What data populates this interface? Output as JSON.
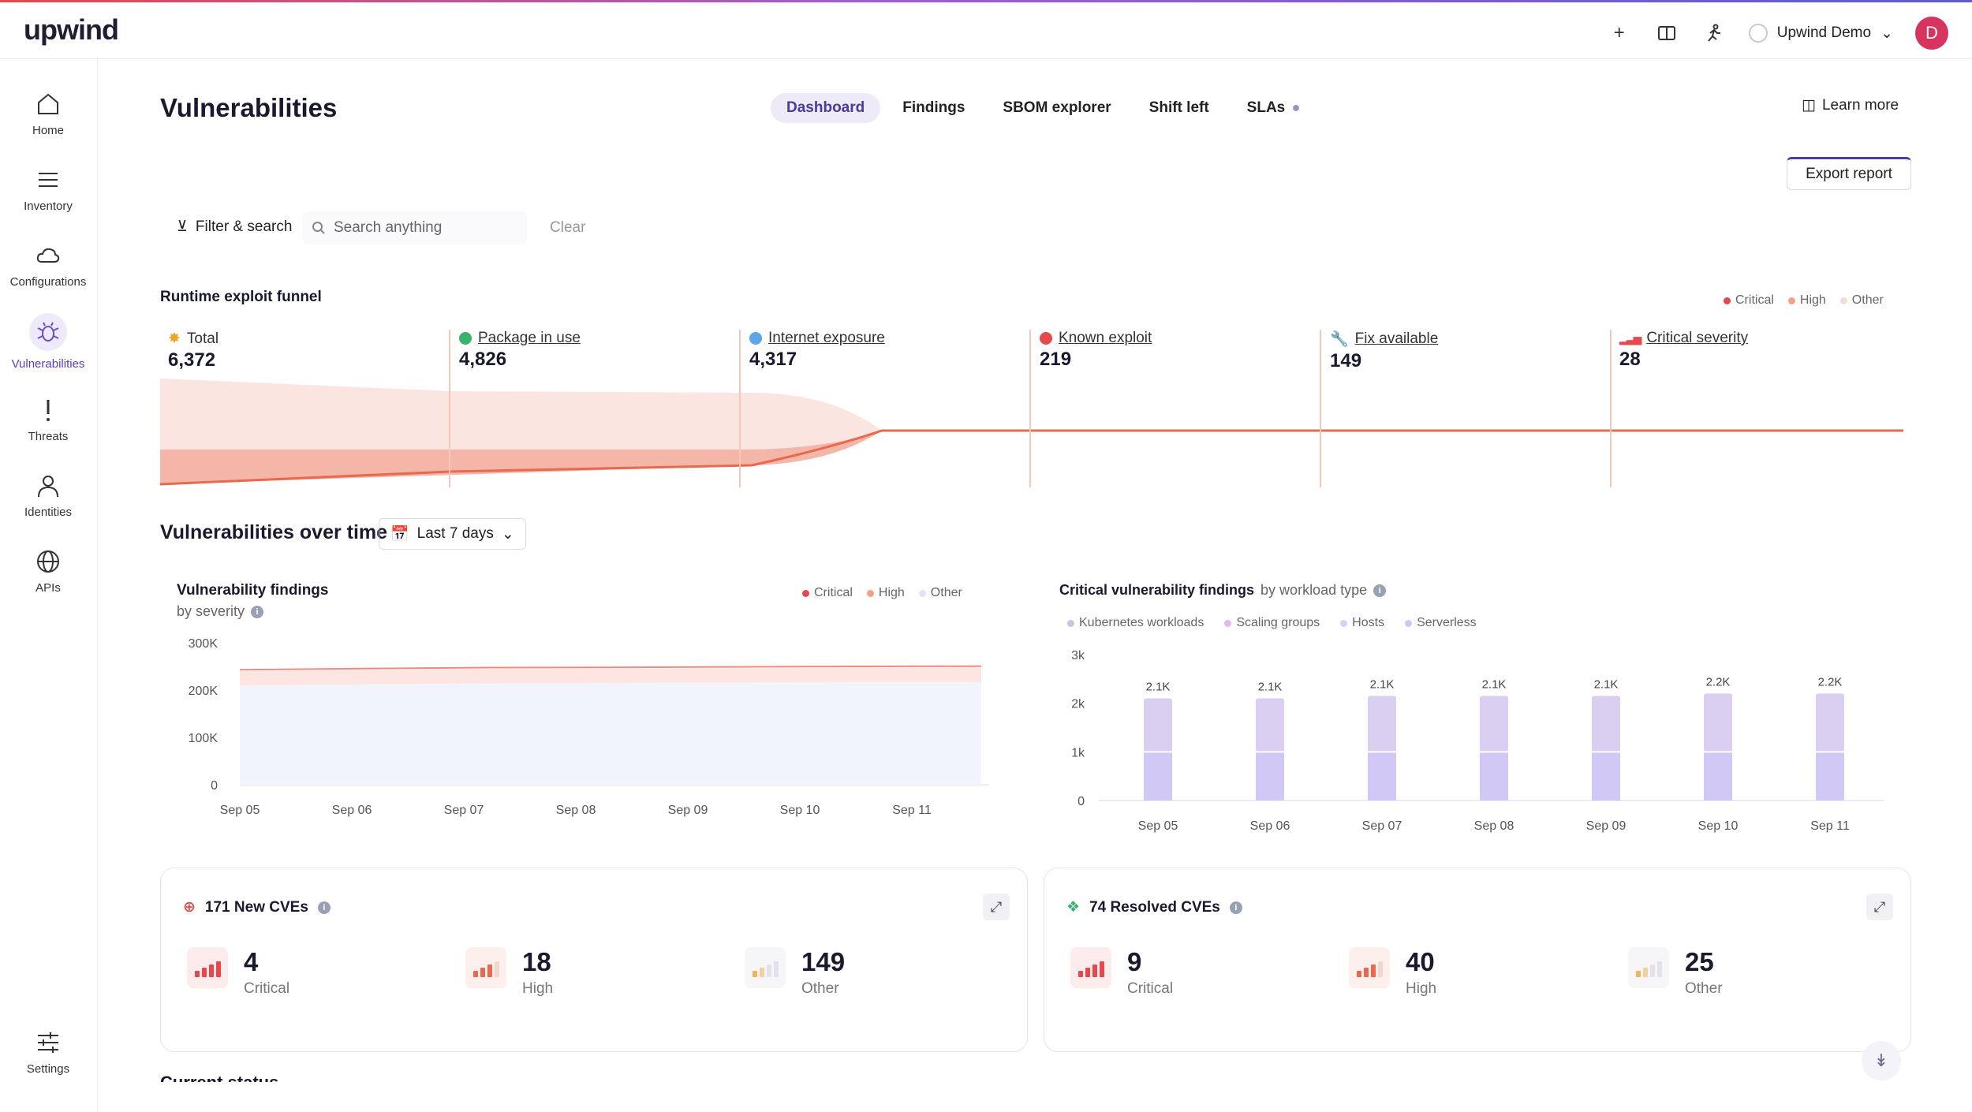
{
  "brand": {
    "logo": "upwind"
  },
  "topbar": {
    "org_name": "Upwind Demo",
    "avatar_initial": "D",
    "icons": [
      "plus-icon",
      "book-icon",
      "run-icon"
    ]
  },
  "sidebar": {
    "items": [
      {
        "label": "Home",
        "icon": "home-icon"
      },
      {
        "label": "Inventory",
        "icon": "list-icon"
      },
      {
        "label": "Configurations",
        "icon": "cloud-icon"
      },
      {
        "label": "Vulnerabilities",
        "icon": "bug-icon",
        "active": true
      },
      {
        "label": "Threats",
        "icon": "exclamation-icon"
      },
      {
        "label": "Identities",
        "icon": "user-icon"
      },
      {
        "label": "APIs",
        "icon": "globe-icon"
      },
      {
        "label": "Settings",
        "icon": "sliders-icon"
      }
    ]
  },
  "page": {
    "title": "Vulnerabilities",
    "tabs": [
      "Dashboard",
      "Findings",
      "SBOM explorer",
      "Shift left",
      "SLAs"
    ],
    "learn_more": "Learn more",
    "export_report": "Export report",
    "filter_label": "Filter & search",
    "search_placeholder": "Search anything",
    "clear_label": "Clear"
  },
  "funnel": {
    "title": "Runtime exploit funnel",
    "legend": [
      "Critical",
      "High",
      "Other"
    ],
    "steps": [
      {
        "label": "Total",
        "value": "6,372"
      },
      {
        "label": "Package in use",
        "value": "4,826"
      },
      {
        "label": "Internet exposure",
        "value": "4,317"
      },
      {
        "label": "Known exploit",
        "value": "219"
      },
      {
        "label": "Fix available",
        "value": "149"
      },
      {
        "label": "Critical severity",
        "value": "28"
      }
    ]
  },
  "over_time": {
    "title": "Vulnerabilities over time",
    "range": "Last 7 days"
  },
  "chart_data": [
    {
      "type": "area",
      "title": "Vulnerability findings",
      "subtitle": "by severity",
      "x": [
        "Sep 05",
        "Sep 06",
        "Sep 07",
        "Sep 08",
        "Sep 09",
        "Sep 10",
        "Sep 11"
      ],
      "yticks": [
        "300K",
        "200K",
        "100K",
        "0"
      ],
      "ylim": [
        0,
        300000
      ],
      "legend": [
        "Critical",
        "High",
        "Other"
      ],
      "series": [
        {
          "name": "Other",
          "values": [
            210000,
            212000,
            214000,
            215000,
            216000,
            217000,
            217000
          ]
        },
        {
          "name": "High",
          "values": [
            30000,
            30500,
            30500,
            30000,
            30000,
            30000,
            30500
          ]
        },
        {
          "name": "Critical",
          "values": [
            3000,
            3000,
            3000,
            3000,
            3000,
            3000,
            3000
          ]
        }
      ]
    },
    {
      "type": "bar",
      "title": "Critical vulnerability findings",
      "subtitle": "by workload type",
      "categories": [
        "Sep 05",
        "Sep 06",
        "Sep 07",
        "Sep 08",
        "Sep 09",
        "Sep 10",
        "Sep 11"
      ],
      "yticks": [
        "3k",
        "2k",
        "1k",
        "0"
      ],
      "ylim": [
        0,
        3000
      ],
      "legend": [
        "Kubernetes workloads",
        "Scaling groups",
        "Hosts",
        "Serverless"
      ],
      "totals": [
        "2.1K",
        "2.1K",
        "2.1K",
        "2.1K",
        "2.1K",
        "2.2K",
        "2.2K"
      ],
      "series": [
        {
          "name": "Hosts",
          "values": [
            1000,
            1000,
            1000,
            1000,
            1000,
            1000,
            1000
          ]
        },
        {
          "name": "Kubernetes workloads",
          "values": [
            1100,
            1100,
            1150,
            1150,
            1150,
            1200,
            1200
          ]
        }
      ]
    }
  ],
  "cards": [
    {
      "title": "171 New CVEs",
      "stats": [
        {
          "num": "4",
          "label": "Critical"
        },
        {
          "num": "18",
          "label": "High"
        },
        {
          "num": "149",
          "label": "Other"
        }
      ]
    },
    {
      "title": "74 Resolved CVEs",
      "stats": [
        {
          "num": "9",
          "label": "Critical"
        },
        {
          "num": "40",
          "label": "High"
        },
        {
          "num": "25",
          "label": "Other"
        }
      ]
    }
  ],
  "footer": {
    "current_status": "Current status"
  },
  "colors": {
    "accent": "#5b3cc4",
    "critical": "#e5484d",
    "high": "#f3a08a",
    "other": "#f5ddd6",
    "bar_main": "#d9ccf0",
    "bar_low": "#cfc4f6"
  }
}
